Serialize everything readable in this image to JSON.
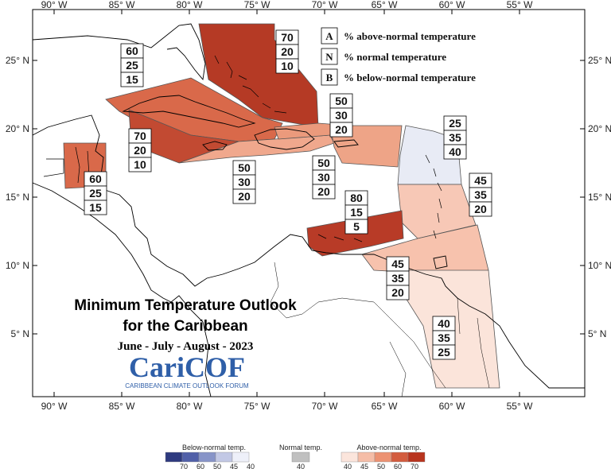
{
  "title": {
    "line1": "Minimum Temperature Outlook",
    "line2": "for the Caribbean",
    "season": "June - July - August - 2023"
  },
  "logo": {
    "name": "CariCOF",
    "subtitle": "CARIBBEAN CLIMATE OUTLOOK FORUM"
  },
  "axes": {
    "lon_labels": [
      "90° W",
      "85° W",
      "80° W",
      "75° W",
      "70° W",
      "65° W",
      "60° W",
      "55° W"
    ],
    "lat_labels": [
      "25° N",
      "20° N",
      "15° N",
      "10° N",
      "5° N"
    ]
  },
  "legend": [
    {
      "key": "A",
      "text": "% above-normal temperature"
    },
    {
      "key": "N",
      "text": "% normal temperature"
    },
    {
      "key": "B",
      "text": "% below-normal temperature"
    }
  ],
  "regions": [
    {
      "id": "bahamas",
      "values": [
        "70",
        "20",
        "10"
      ],
      "color": "#b53a25"
    },
    {
      "id": "cuba",
      "values": [
        "60",
        "25",
        "15"
      ],
      "color": "#d9694a"
    },
    {
      "id": "hispaniola",
      "values": [
        "50",
        "30",
        "20"
      ],
      "color": "#eb9a7c"
    },
    {
      "id": "jamaica",
      "values": [
        "70",
        "20",
        "10"
      ],
      "color": "#c24a32"
    },
    {
      "id": "caribbean-central",
      "values": [
        "50",
        "30",
        "20"
      ],
      "color": "#f0a88d"
    },
    {
      "id": "puerto-rico",
      "values": [
        "50",
        "30",
        "20"
      ],
      "color": "#eea487"
    },
    {
      "id": "belize",
      "values": [
        "60",
        "25",
        "15"
      ],
      "color": "#d9694a"
    },
    {
      "id": "leeward-islands",
      "values": [
        "25",
        "35",
        "40"
      ],
      "color": "#e8ebf5"
    },
    {
      "id": "windward-islands",
      "values": [
        "45",
        "35",
        "20"
      ],
      "color": "#f7c8b6"
    },
    {
      "id": "abc-islands",
      "values": [
        "80",
        "15",
        "5"
      ],
      "color": "#b83b27"
    },
    {
      "id": "trinidad",
      "values": [
        "45",
        "35",
        "20"
      ],
      "color": "#f7c2ad"
    },
    {
      "id": "guianas",
      "values": [
        "40",
        "35",
        "25"
      ],
      "color": "#fbe4da"
    }
  ],
  "colorbar": {
    "below_title": "Below-normal temp.",
    "normal_title": "Normal temp.",
    "above_title": "Above-normal temp.",
    "below_colors": [
      "#2e3a7f",
      "#5160a8",
      "#8794c8",
      "#c2c8e5",
      "#eef0f9"
    ],
    "below_ticks": [
      "70",
      "60",
      "50",
      "45",
      "40"
    ],
    "normal_color": "#c0c0c0",
    "normal_tick": "40",
    "above_colors": [
      "#fbe5dc",
      "#f5bda7",
      "#ec9272",
      "#d35c3e",
      "#b8341e"
    ],
    "above_ticks": [
      "40",
      "45",
      "50",
      "60",
      "70"
    ]
  }
}
